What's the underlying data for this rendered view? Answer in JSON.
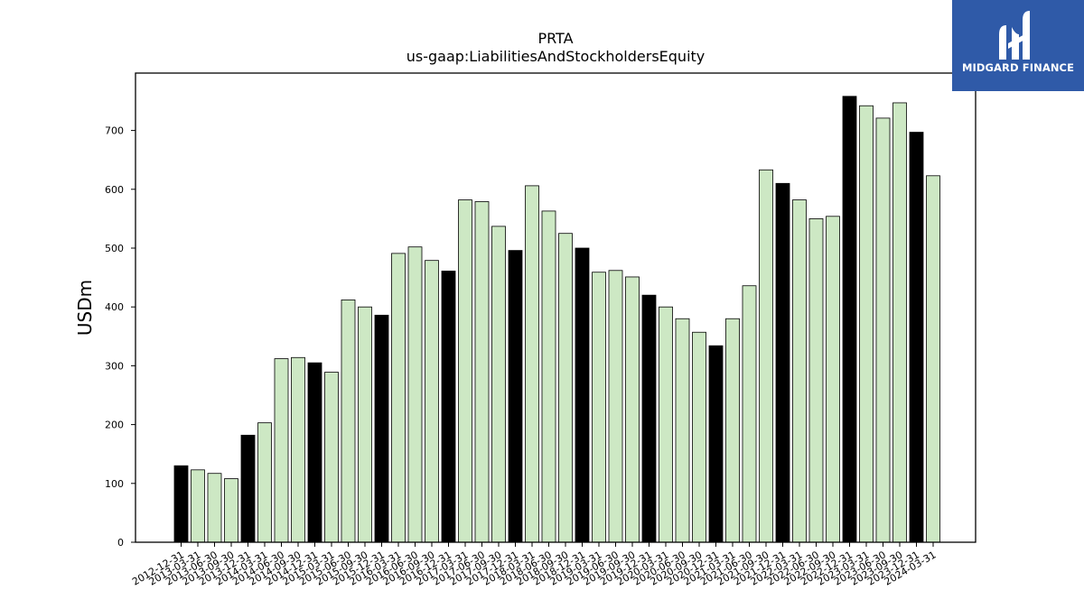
{
  "brand": {
    "name": "MIDGARD FINANCE",
    "bg_color": "#2f5aa8",
    "text_color": "#ffffff"
  },
  "chart_data": {
    "type": "bar",
    "title": "PRTA",
    "subtitle": "us-gaap:LiabilitiesAndStockholdersEquity",
    "xlabel": "",
    "ylabel": "USDm",
    "ylim": [
      0,
      790
    ],
    "yticks": [
      0,
      100,
      200,
      300,
      400,
      500,
      600,
      700
    ],
    "grid": false,
    "colors": {
      "q4": "#000000",
      "other": "#cde8c4",
      "edge": "#000000"
    },
    "categories": [
      "2012-12-31",
      "2013-03-31",
      "2013-06-30",
      "2013-09-30",
      "2013-12-31",
      "2014-03-31",
      "2014-06-30",
      "2014-09-30",
      "2014-12-31",
      "2015-03-31",
      "2015-06-30",
      "2015-09-30",
      "2015-12-31",
      "2016-03-31",
      "2016-06-30",
      "2016-09-30",
      "2016-12-31",
      "2017-03-31",
      "2017-06-30",
      "2017-09-30",
      "2017-12-31",
      "2018-03-31",
      "2018-06-30",
      "2018-09-30",
      "2018-12-31",
      "2019-03-31",
      "2019-06-30",
      "2019-09-30",
      "2019-12-31",
      "2020-03-31",
      "2020-06-30",
      "2020-09-30",
      "2020-12-31",
      "2021-03-31",
      "2021-06-30",
      "2021-09-30",
      "2021-12-31",
      "2022-03-31",
      "2022-06-30",
      "2022-09-30",
      "2022-12-31",
      "2023-03-31",
      "2023-06-30",
      "2023-09-30",
      "2023-12-31",
      "2024-03-31"
    ],
    "values": [
      130,
      123,
      117,
      108,
      182,
      203,
      312,
      314,
      305,
      289,
      412,
      400,
      386,
      491,
      502,
      479,
      461,
      582,
      579,
      537,
      496,
      606,
      563,
      525,
      500,
      459,
      462,
      451,
      420,
      400,
      380,
      357,
      334,
      380,
      436,
      633,
      610,
      582,
      550,
      554,
      758,
      742,
      721,
      747,
      697,
      623
    ],
    "highlight": [
      true,
      false,
      false,
      false,
      true,
      false,
      false,
      false,
      true,
      false,
      false,
      false,
      true,
      false,
      false,
      false,
      true,
      false,
      false,
      false,
      true,
      false,
      false,
      false,
      true,
      false,
      false,
      false,
      true,
      false,
      false,
      false,
      true,
      false,
      false,
      false,
      true,
      false,
      false,
      false,
      true,
      false,
      false,
      false,
      true,
      false
    ]
  }
}
